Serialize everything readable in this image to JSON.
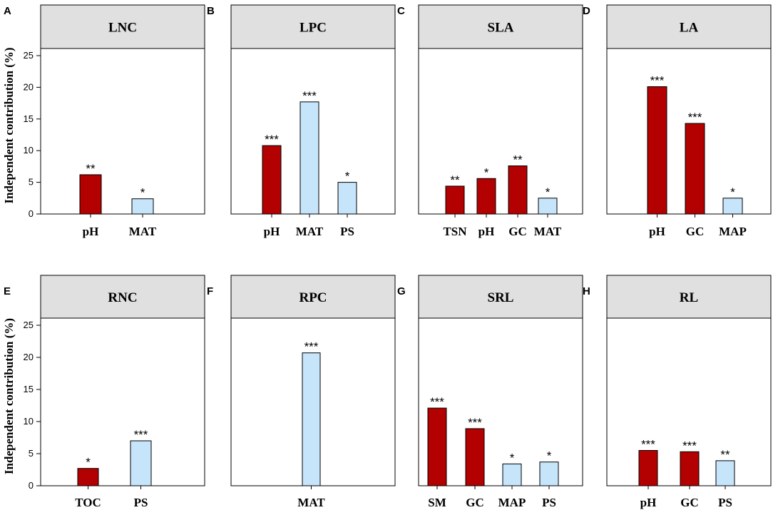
{
  "colors": {
    "significant_positive": "#b30000",
    "significant_negative": "#c6e5fb",
    "strip": "#e0e0e0"
  },
  "chart_data": [
    {
      "type": "bar",
      "panel": "A",
      "title": "LNC",
      "ylabel": "Independent contribution (%)",
      "ylim": [
        0,
        25
      ],
      "yticks": [
        0,
        5,
        10,
        15,
        20,
        25
      ],
      "categories": [
        "pH",
        "MAT"
      ],
      "values": [
        6.2,
        2.4
      ],
      "colors": [
        "red",
        "blue"
      ],
      "significance": [
        "**",
        "*"
      ]
    },
    {
      "type": "bar",
      "panel": "B",
      "title": "LPC",
      "ylabel": "",
      "ylim": [
        0,
        25
      ],
      "categories": [
        "pH",
        "MAT",
        "PS"
      ],
      "values": [
        10.8,
        17.7,
        5.0
      ],
      "colors": [
        "red",
        "blue",
        "blue"
      ],
      "significance": [
        "***",
        "***",
        "*"
      ]
    },
    {
      "type": "bar",
      "panel": "C",
      "title": "SLA",
      "ylabel": "",
      "ylim": [
        0,
        25
      ],
      "categories": [
        "TSN",
        "pH",
        "GC",
        "MAT"
      ],
      "values": [
        4.4,
        5.6,
        7.6,
        2.5
      ],
      "colors": [
        "red",
        "red",
        "red",
        "blue"
      ],
      "significance": [
        "**",
        "*",
        "**",
        "*"
      ]
    },
    {
      "type": "bar",
      "panel": "D",
      "title": "LA",
      "ylabel": "",
      "ylim": [
        0,
        25
      ],
      "categories": [
        "pH",
        "GC",
        "MAP"
      ],
      "values": [
        20.1,
        14.3,
        2.5
      ],
      "colors": [
        "red",
        "red",
        "blue"
      ],
      "significance": [
        "***",
        "***",
        "*"
      ]
    },
    {
      "type": "bar",
      "panel": "E",
      "title": "RNC",
      "ylabel": "Independent contribution (%)",
      "ylim": [
        0,
        25
      ],
      "yticks": [
        0,
        5,
        10,
        15,
        20,
        25
      ],
      "categories": [
        "TOC",
        "PS"
      ],
      "values": [
        2.7,
        7.0
      ],
      "colors": [
        "red",
        "blue"
      ],
      "significance": [
        "*",
        "***"
      ]
    },
    {
      "type": "bar",
      "panel": "F",
      "title": "RPC",
      "ylabel": "",
      "ylim": [
        0,
        25
      ],
      "categories": [
        "MAT"
      ],
      "values": [
        20.7
      ],
      "colors": [
        "blue"
      ],
      "significance": [
        "***"
      ]
    },
    {
      "type": "bar",
      "panel": "G",
      "title": "SRL",
      "ylabel": "",
      "ylim": [
        0,
        25
      ],
      "categories": [
        "SM",
        "GC",
        "MAP",
        "PS"
      ],
      "values": [
        12.1,
        8.9,
        3.4,
        3.7
      ],
      "colors": [
        "red",
        "red",
        "blue",
        "blue"
      ],
      "significance": [
        "***",
        "***",
        "*",
        "*"
      ]
    },
    {
      "type": "bar",
      "panel": "H",
      "title": "RL",
      "ylabel": "",
      "ylim": [
        0,
        25
      ],
      "categories": [
        "pH",
        "GC",
        "PS"
      ],
      "values": [
        5.5,
        5.3,
        3.9
      ],
      "colors": [
        "red",
        "red",
        "blue"
      ],
      "significance": [
        "***",
        "***",
        "**"
      ]
    }
  ]
}
